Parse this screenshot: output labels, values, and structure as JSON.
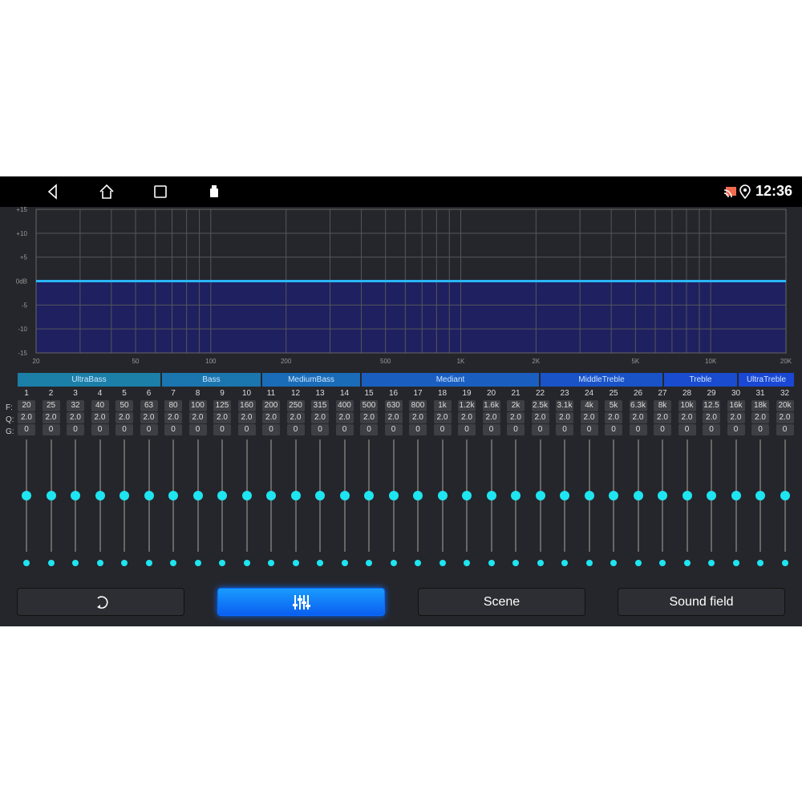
{
  "status_bar": {
    "time": "12:36",
    "icons": [
      "back-icon",
      "home-icon",
      "recents-icon",
      "usb-icon",
      "cast-icon",
      "location-icon"
    ]
  },
  "chart_data": {
    "type": "area",
    "x_scale": "log",
    "xlim": [
      20,
      20000
    ],
    "ylim": [
      -15,
      15
    ],
    "x_ticks": [
      "20",
      "50",
      "100",
      "200",
      "500",
      "1K",
      "2K",
      "5K",
      "10K",
      "20K"
    ],
    "y_ticks": [
      "+15",
      "+10",
      "+5",
      "0dB",
      "-5",
      "-10",
      "-15"
    ],
    "series": [
      {
        "x": [
          20,
          20000
        ],
        "y": [
          0,
          0
        ]
      }
    ],
    "grid": true,
    "line_color": "#29b6f6",
    "fill_color": "#1f2060"
  },
  "groups": [
    {
      "label": "UltraBass",
      "color": "#1b7fa8"
    },
    {
      "label": "Bass",
      "color": "#1b76b0"
    },
    {
      "label": "MediumBass",
      "color": "#1a6cb8"
    },
    {
      "label": "Mediant",
      "color": "#1a5fc0"
    },
    {
      "label": "MiddleTreble",
      "color": "#1a53c8"
    },
    {
      "label": "Treble",
      "color": "#1a4ccf"
    },
    {
      "label": "UltraTreble",
      "color": "#1a47d4"
    }
  ],
  "row_labels": {
    "f": "F:",
    "q": "Q:",
    "g": "G:"
  },
  "bands": {
    "numbers": [
      "1",
      "2",
      "3",
      "4",
      "5",
      "6",
      "7",
      "8",
      "9",
      "10",
      "11",
      "12",
      "13",
      "14",
      "15",
      "16",
      "17",
      "18",
      "19",
      "20",
      "21",
      "22",
      "23",
      "24",
      "25",
      "26",
      "27",
      "28",
      "29",
      "30",
      "31",
      "32"
    ],
    "freq": [
      "20",
      "25",
      "32",
      "40",
      "50",
      "63",
      "80",
      "100",
      "125",
      "160",
      "200",
      "250",
      "315",
      "400",
      "500",
      "630",
      "800",
      "1k",
      "1.2k",
      "1.6k",
      "2k",
      "2.5k",
      "3.1k",
      "4k",
      "5k",
      "6.3k",
      "8k",
      "10k",
      "12.5",
      "16k",
      "18k",
      "20k"
    ],
    "q": [
      "2.0",
      "2.0",
      "2.0",
      "2.0",
      "2.0",
      "2.0",
      "2.0",
      "2.0",
      "2.0",
      "2.0",
      "2.0",
      "2.0",
      "2.0",
      "2.0",
      "2.0",
      "2.0",
      "2.0",
      "2.0",
      "2.0",
      "2.0",
      "2.0",
      "2.0",
      "2.0",
      "2.0",
      "2.0",
      "2.0",
      "2.0",
      "2.0",
      "2.0",
      "2.0",
      "2.0",
      "2.0"
    ],
    "gain": [
      "0",
      "0",
      "0",
      "0",
      "0",
      "0",
      "0",
      "0",
      "0",
      "0",
      "0",
      "0",
      "0",
      "0",
      "0",
      "0",
      "0",
      "0",
      "0",
      "0",
      "0",
      "0",
      "0",
      "0",
      "0",
      "0",
      "0",
      "0",
      "0",
      "0",
      "0",
      "0"
    ]
  },
  "buttons": {
    "reset_icon": "reset-icon",
    "eq_icon": "equalizer-icon",
    "scene": "Scene",
    "sound_field": "Sound field",
    "active": "equalizer"
  }
}
